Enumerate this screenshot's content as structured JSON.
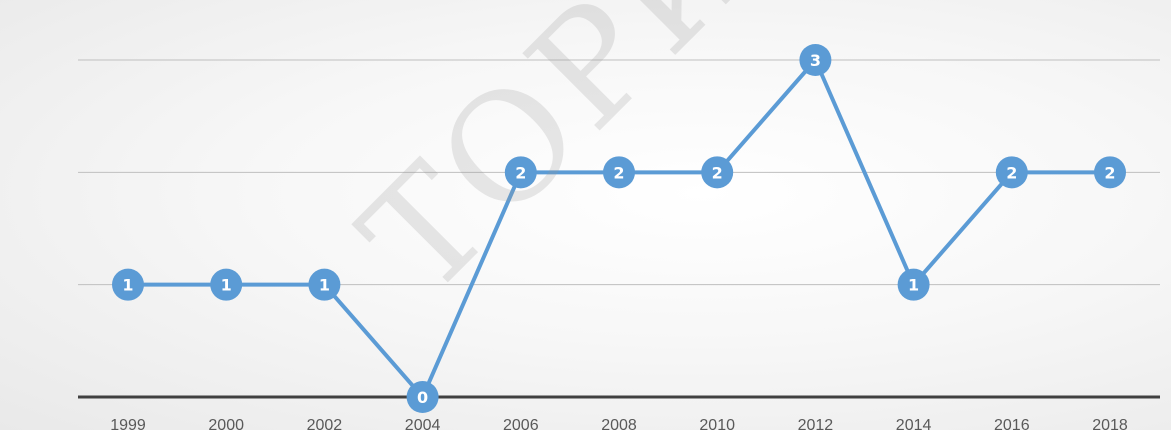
{
  "chart_data": {
    "type": "line",
    "categories": [
      "1999",
      "2000",
      "2002",
      "2004",
      "2006",
      "2008",
      "2010",
      "2012",
      "2014",
      "2016",
      "2018"
    ],
    "series": [
      {
        "values": [
          1,
          1,
          1,
          0,
          2,
          2,
          2,
          3,
          1,
          2,
          2
        ]
      }
    ],
    "data_labels": [
      "1",
      "1",
      "1",
      "0",
      "2",
      "2",
      "2",
      "3",
      "1",
      "2",
      "2"
    ],
    "ylim": [
      0,
      3
    ],
    "grid": true,
    "colors": {
      "series": "#5b9bd5",
      "gridline": "#bfbfbf",
      "axis": "#404040",
      "tick_label": "#595959"
    },
    "watermark": "ТОРИЙ БРЕ"
  }
}
